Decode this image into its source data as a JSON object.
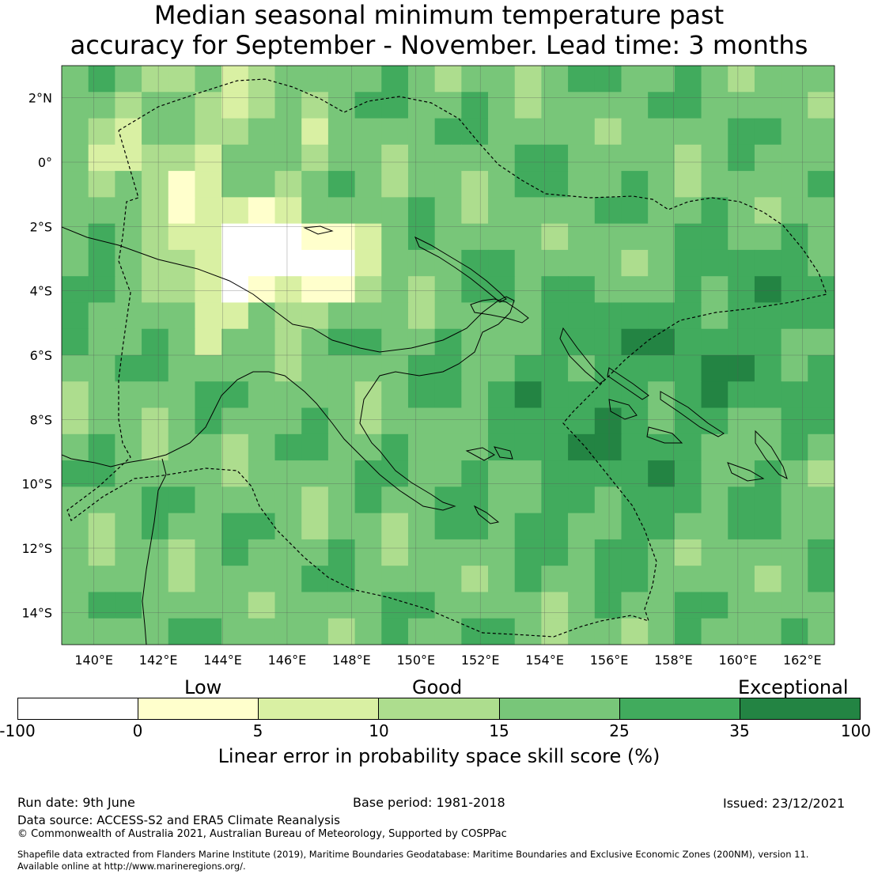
{
  "title": {
    "line1": "Median seasonal minimum temperature past",
    "line2": "accuracy for September - November. Lead time: 3 months"
  },
  "map": {
    "lat_labels": [
      "2°N",
      "0°",
      "2°S",
      "4°S",
      "6°S",
      "8°S",
      "10°S",
      "12°S",
      "14°S"
    ],
    "lat_values": [
      2,
      0,
      -2,
      -4,
      -6,
      -8,
      -10,
      -12,
      -14
    ],
    "lon_labels": [
      "140°E",
      "142°E",
      "144°E",
      "146°E",
      "148°E",
      "150°E",
      "152°E",
      "154°E",
      "156°E",
      "158°E",
      "160°E",
      "162°E"
    ],
    "lon_values": [
      140,
      142,
      144,
      146,
      148,
      150,
      152,
      154,
      156,
      158,
      160,
      162
    ],
    "extent": {
      "lon_min": 139,
      "lon_max": 163,
      "lat_min": -15,
      "lat_max": 3
    },
    "grid": "on",
    "colors": {
      "neg": "#ffffff",
      "c0_5": "#ffffcc",
      "c5_10": "#d9f0a3",
      "c10_15": "#addd8e",
      "c15_25": "#78c679",
      "c25_35": "#41ab5d",
      "c35_100": "#238443"
    }
  },
  "legend": {
    "category_labels": [
      "Low",
      "Good",
      "Exceptional"
    ],
    "ticks": [
      "-100",
      "0",
      "5",
      "10",
      "15",
      "25",
      "35",
      "100"
    ],
    "colors": [
      "#ffffff",
      "#ffffcc",
      "#d9f0a3",
      "#addd8e",
      "#78c679",
      "#41ab5d",
      "#238443"
    ],
    "title": "Linear error in probability space skill score (%)"
  },
  "footer": {
    "run_date": "Run date: 9th June",
    "base_period": "Base period: 1981-2018",
    "issued": "Issued: 23/12/2021",
    "data_source": "Data source: ACCESS-S2 and ERA5 Climate Reanalysis",
    "copyright": "© Commonwealth of Australia 2021, Australian Bureau of Meteorology, Supported by COSPPac",
    "shapefile_line1": "Shapefile data extracted from Flanders Marine Institute (2019), Maritime Boundaries Geodatabase: Maritime Boundaries and Exclusive Economic Zones (200NM), version 11.",
    "shapefile_line2": "Available online at http://www.marineregions.org/."
  }
}
